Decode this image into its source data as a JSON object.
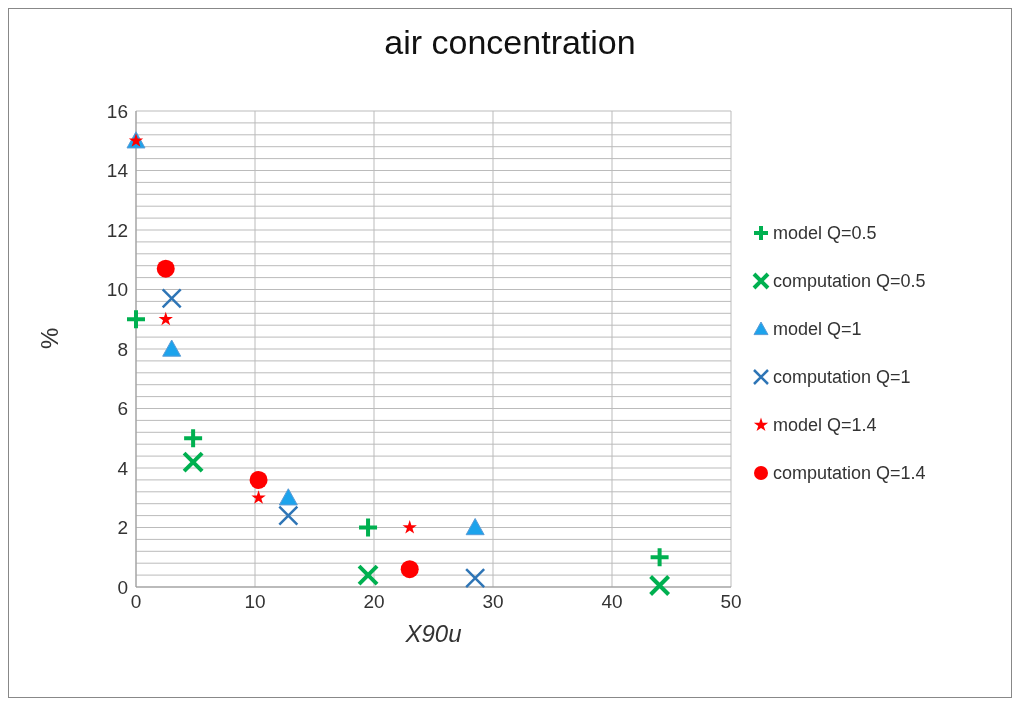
{
  "chart_data": {
    "type": "scatter",
    "title": "air concentration",
    "xlabel": "X90u",
    "ylabel": "%",
    "xlim": [
      0,
      50
    ],
    "xticks": [
      0,
      10,
      20,
      30,
      40,
      50
    ],
    "ylim": [
      0,
      16
    ],
    "yticks": [
      0,
      {
        "value": 0.4,
        "label": null
      },
      {
        "value": 0.8,
        "label": null
      },
      {
        "value": 1.2,
        "label": null
      },
      {
        "value": 1.6,
        "label": null
      },
      2,
      {
        "value": 2.4,
        "label": null
      },
      {
        "value": 2.8,
        "label": null
      },
      {
        "value": 3.2,
        "label": null
      },
      {
        "value": 3.6,
        "label": null
      },
      4,
      {
        "value": 4.4,
        "label": null
      },
      {
        "value": 4.8,
        "label": null
      },
      {
        "value": 5.2,
        "label": null
      },
      {
        "value": 5.6,
        "label": null
      },
      6,
      {
        "value": 6.4,
        "label": null
      },
      {
        "value": 6.8,
        "label": null
      },
      {
        "value": 7.2,
        "label": null
      },
      {
        "value": 7.6,
        "label": null
      },
      8,
      {
        "value": 8.4,
        "label": null
      },
      {
        "value": 8.8,
        "label": null
      },
      {
        "value": 9.2,
        "label": null
      },
      {
        "value": 9.6,
        "label": null
      },
      10,
      {
        "value": 10.4,
        "label": null
      },
      {
        "value": 10.8,
        "label": null
      },
      {
        "value": 11.2,
        "label": null
      },
      {
        "value": 11.6,
        "label": null
      },
      12,
      {
        "value": 12.4,
        "label": null
      },
      {
        "value": 12.8,
        "label": null
      },
      {
        "value": 13.2,
        "label": null
      },
      {
        "value": 13.6,
        "label": null
      },
      14,
      {
        "value": 14.4,
        "label": null
      },
      {
        "value": 14.8,
        "label": null
      },
      {
        "value": 15.2,
        "label": null
      },
      {
        "value": 15.6,
        "label": null
      },
      16
    ],
    "grid": true,
    "legend": "right",
    "series": [
      {
        "name": "model Q=0.5",
        "color": "#00b050",
        "marker": "cross",
        "x": [
          0,
          4.8,
          19.5,
          44
        ],
        "values": [
          9,
          5,
          2,
          1
        ]
      },
      {
        "name": "computation Q=0.5",
        "color": "#00b050",
        "marker": "x",
        "x": [
          4.8,
          19.5,
          44
        ],
        "values": [
          4.2,
          0.4,
          0.05
        ]
      },
      {
        "name": "model Q=1",
        "color": "#1ca3ec",
        "marker": "triangle",
        "x": [
          0,
          3,
          12.8,
          28.5
        ],
        "values": [
          15,
          8,
          3,
          2
        ]
      },
      {
        "name": "computation Q=1",
        "color": "#2e75b6",
        "marker": "x",
        "x": [
          3,
          12.8,
          28.5
        ],
        "values": [
          9.7,
          2.4,
          0.3
        ]
      },
      {
        "name": "model Q=1.4",
        "color": "#ff0000",
        "marker": "star",
        "x": [
          0,
          2.5,
          10.3,
          23
        ],
        "values": [
          15,
          9,
          3,
          2
        ]
      },
      {
        "name": "computation Q=1.4",
        "color": "#ff0000",
        "marker": "circle",
        "x": [
          2.5,
          10.3,
          23
        ],
        "values": [
          10.7,
          3.6,
          0.6
        ]
      }
    ]
  }
}
